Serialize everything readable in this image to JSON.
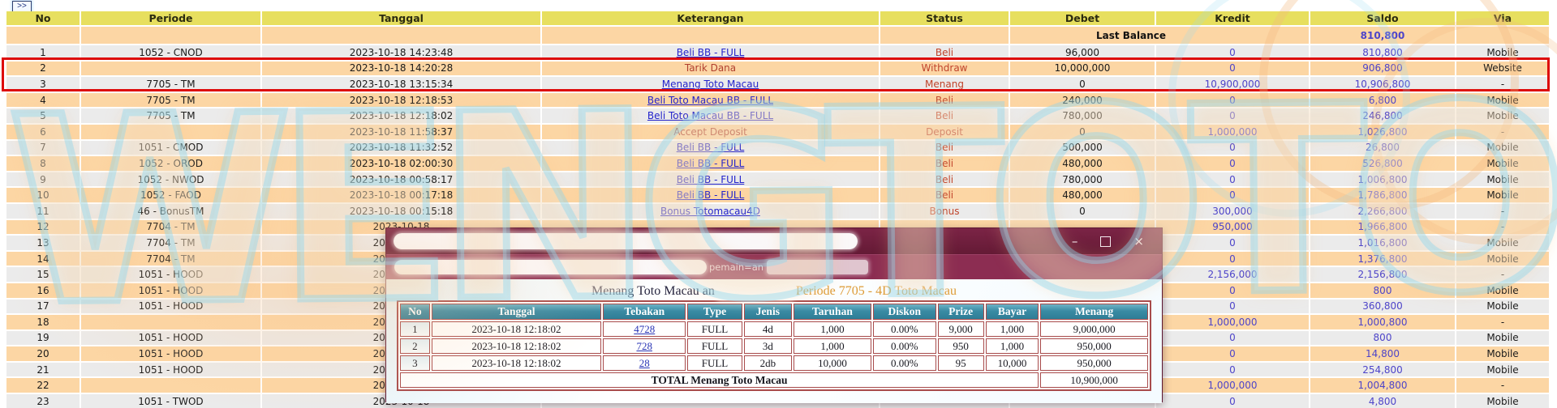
{
  "nav": {
    "more_button": ">>"
  },
  "ledger": {
    "headers": [
      "No",
      "Periode",
      "Tanggal",
      "Keterangan",
      "Status",
      "Debet",
      "Kredit",
      "Saldo",
      "Via"
    ],
    "last_balance": {
      "label": "Last Balance",
      "saldo": "810,800"
    },
    "rows": [
      {
        "no": "1",
        "periode": "1052 - CNOD",
        "tanggal": "2023-10-18 14:23:48",
        "keterangan": "Beli BB - FULL",
        "link": true,
        "status": "Beli",
        "debet": "96,000",
        "kredit": "0",
        "saldo": "810,800",
        "via": "Mobile"
      },
      {
        "no": "2",
        "periode": "",
        "tanggal": "2023-10-18 14:20:28",
        "keterangan": "Tarik Dana",
        "link": false,
        "status": "Withdraw",
        "debet": "10,000,000",
        "kredit": "0",
        "saldo": "906,800",
        "via": "Website"
      },
      {
        "no": "3",
        "periode": "7705 - TM",
        "tanggal": "2023-10-18 13:15:34",
        "keterangan": "Menang Toto Macau",
        "link": true,
        "status": "Menang",
        "debet": "0",
        "kredit": "10,900,000",
        "saldo": "10,906,800",
        "via": "-"
      },
      {
        "no": "4",
        "periode": "7705 - TM",
        "tanggal": "2023-10-18 12:18:53",
        "keterangan": "Beli Toto Macau BB - FULL",
        "link": true,
        "status": "Beli",
        "debet": "240,000",
        "kredit": "0",
        "saldo": "6,800",
        "via": "Mobile"
      },
      {
        "no": "5",
        "periode": "7705 - TM",
        "tanggal": "2023-10-18 12:18:02",
        "keterangan": "Beli Toto Macau BB - FULL",
        "link": true,
        "status": "Beli",
        "debet": "780,000",
        "kredit": "0",
        "saldo": "246,800",
        "via": "Mobile"
      },
      {
        "no": "6",
        "periode": "",
        "tanggal": "2023-10-18 11:58:37",
        "keterangan": "Accept Deposit",
        "link": false,
        "status": "Deposit",
        "debet": "0",
        "kredit": "1,000,000",
        "saldo": "1,026,800",
        "via": "-"
      },
      {
        "no": "7",
        "periode": "1051 - CMOD",
        "tanggal": "2023-10-18 11:32:52",
        "keterangan": "Beli BB - FULL",
        "link": true,
        "status": "Beli",
        "debet": "500,000",
        "kredit": "0",
        "saldo": "26,800",
        "via": "Mobile"
      },
      {
        "no": "8",
        "periode": "1052 - OROD",
        "tanggal": "2023-10-18 02:00:30",
        "keterangan": "Beli BB - FULL",
        "link": true,
        "status": "Beli",
        "debet": "480,000",
        "kredit": "0",
        "saldo": "526,800",
        "via": "Mobile"
      },
      {
        "no": "9",
        "periode": "1052 - NWOD",
        "tanggal": "2023-10-18 00:58:17",
        "keterangan": "Beli BB - FULL",
        "link": true,
        "status": "Beli",
        "debet": "780,000",
        "kredit": "0",
        "saldo": "1,006,800",
        "via": "Mobile"
      },
      {
        "no": "10",
        "periode": "1052 - FAOD",
        "tanggal": "2023-10-18 00:17:18",
        "keterangan": "Beli BB - FULL",
        "link": true,
        "status": "Beli",
        "debet": "480,000",
        "kredit": "0",
        "saldo": "1,786,800",
        "via": "Mobile"
      },
      {
        "no": "11",
        "periode": "46 - BonusTM",
        "tanggal": "2023-10-18 00:15:18",
        "keterangan": "Bonus Totomacau4D",
        "link": true,
        "status": "Bonus",
        "debet": "0",
        "kredit": "300,000",
        "saldo": "2,266,800",
        "via": "-"
      },
      {
        "no": "12",
        "periode": "7704 - TM",
        "tanggal": "2023-10-18",
        "keterangan": "",
        "link": false,
        "status": "",
        "debet": "",
        "kredit": "950,000",
        "saldo": "1,966,800",
        "via": "-"
      },
      {
        "no": "13",
        "periode": "7704 - TM",
        "tanggal": "2023-10-18",
        "keterangan": "",
        "link": false,
        "status": "",
        "debet": "",
        "kredit": "0",
        "saldo": "1,016,800",
        "via": "Mobile"
      },
      {
        "no": "14",
        "periode": "7704 - TM",
        "tanggal": "2023-10-18",
        "keterangan": "",
        "link": false,
        "status": "",
        "debet": "",
        "kredit": "0",
        "saldo": "1,376,800",
        "via": "Mobile"
      },
      {
        "no": "15",
        "periode": "1051 - HOOD",
        "tanggal": "2023-10-18",
        "keterangan": "",
        "link": false,
        "status": "",
        "debet": "",
        "kredit": "2,156,000",
        "saldo": "2,156,800",
        "via": "-"
      },
      {
        "no": "16",
        "periode": "1051 - HOOD",
        "tanggal": "2023-10-18",
        "keterangan": "",
        "link": false,
        "status": "",
        "debet": "",
        "kredit": "0",
        "saldo": "800",
        "via": "Mobile"
      },
      {
        "no": "17",
        "periode": "1051 - HOOD",
        "tanggal": "2023-10-18",
        "keterangan": "",
        "link": false,
        "status": "",
        "debet": "",
        "kredit": "0",
        "saldo": "360,800",
        "via": "Mobile"
      },
      {
        "no": "18",
        "periode": "",
        "tanggal": "2023-10-18",
        "keterangan": "",
        "link": false,
        "status": "",
        "debet": "",
        "kredit": "1,000,000",
        "saldo": "1,000,800",
        "via": "-"
      },
      {
        "no": "19",
        "periode": "1051 - HOOD",
        "tanggal": "2023-10-18",
        "keterangan": "",
        "link": false,
        "status": "",
        "debet": "",
        "kredit": "0",
        "saldo": "800",
        "via": "Mobile"
      },
      {
        "no": "20",
        "periode": "1051 - HOOD",
        "tanggal": "2023-10-18",
        "keterangan": "",
        "link": false,
        "status": "",
        "debet": "",
        "kredit": "0",
        "saldo": "14,800",
        "via": "Mobile"
      },
      {
        "no": "21",
        "periode": "1051 - HOOD",
        "tanggal": "2023-10-18",
        "keterangan": "",
        "link": false,
        "status": "",
        "debet": "",
        "kredit": "0",
        "saldo": "254,800",
        "via": "Mobile"
      },
      {
        "no": "22",
        "periode": "",
        "tanggal": "2023-10-18",
        "keterangan": "",
        "link": false,
        "status": "",
        "debet": "",
        "kredit": "1,000,000",
        "saldo": "1,004,800",
        "via": "-"
      },
      {
        "no": "23",
        "periode": "1051 - TWOD",
        "tanggal": "2023-10-18",
        "keterangan": "",
        "link": false,
        "status": "",
        "debet": "",
        "kredit": "0",
        "saldo": "4,800",
        "via": "Mobile"
      }
    ],
    "highlighted_row_numbers": [
      "2",
      "3"
    ]
  },
  "popup": {
    "controls": {
      "minimize": "–",
      "maximize": "□",
      "close": "×"
    },
    "url_fragment": "pemain=an",
    "heading_prefix": "Menang Toto Macau an",
    "heading_suffix": "Periode 7705 - 4D Toto Macau",
    "bet_table": {
      "headers": [
        "No",
        "Tanggal",
        "Tebakan",
        "Type",
        "Jenis",
        "Taruhan",
        "Diskon",
        "Prize",
        "Bayar",
        "Menang"
      ],
      "rows": [
        [
          "1",
          "2023-10-18 12:18:02",
          "4728",
          "FULL",
          "4d",
          "1,000",
          "0.00%",
          "9,000",
          "1,000",
          "9,000,000"
        ],
        [
          "2",
          "2023-10-18 12:18:02",
          "728",
          "FULL",
          "3d",
          "1,000",
          "0.00%",
          "950",
          "1,000",
          "950,000"
        ],
        [
          "3",
          "2023-10-18 12:18:02",
          "28",
          "FULL",
          "2db",
          "10,000",
          "0.00%",
          "95",
          "10,000",
          "950,000"
        ]
      ],
      "total_label": "TOTAL  Menang Toto Macau",
      "total_value": "10,900,000"
    }
  },
  "watermark": {
    "text": "WENGTOTO"
  },
  "colors": {
    "header_bg": "#e7df5f",
    "row_gray": "#ebebeb",
    "row_peach": "#fcd6a4",
    "highlight_border": "#dd0b0b",
    "link_blue": "#2323cc",
    "status_red": "#c0432b",
    "amount_purple": "#4d44c9",
    "popup_titlebar": "#6e1c3c",
    "popup_urlbar": "#8c2d52",
    "bet_header_teal": "#3a8ba4",
    "bet_border": "#a84b4b",
    "heading_orange": "#dd9b35",
    "watermark_cyan": "#8cd6ee"
  }
}
